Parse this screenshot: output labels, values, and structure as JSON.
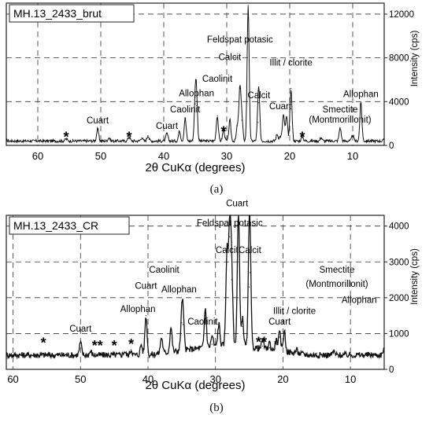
{
  "captions": {
    "a": "(a)",
    "b": "(b)"
  },
  "chart_data": [
    {
      "type": "line",
      "title": "MH.13_2433_brut",
      "xlabel": "2θ CuKα (degrees)",
      "ylabel": "Intensity (cps)",
      "xlim": [
        65,
        5
      ],
      "ylim": [
        0,
        13000
      ],
      "x_ticks": [
        60,
        50,
        40,
        30,
        20,
        10
      ],
      "y_ticks": [
        0,
        4000,
        8000,
        12000
      ],
      "y_tick_labels": [
        "0",
        "4000",
        "8000",
        "12000"
      ],
      "grid": "dashed",
      "baseline": 400,
      "series": [
        {
          "values": [
            [
              65,
              500
            ],
            [
              55.5,
              600
            ],
            [
              50.5,
              1500
            ],
            [
              48.7,
              700
            ],
            [
              45.5,
              800
            ],
            [
              43.5,
              700
            ],
            [
              42.5,
              900
            ],
            [
              39.5,
              1100
            ],
            [
              37.5,
              1300
            ],
            [
              36.6,
              2500
            ],
            [
              35,
              3800
            ],
            [
              34.8,
              4000
            ],
            [
              31.5,
              2700
            ],
            [
              30.5,
              1400
            ],
            [
              29.5,
              2300
            ],
            [
              28.3,
              1800
            ],
            [
              27.9,
              5200
            ],
            [
              27.6,
              2300
            ],
            [
              26.6,
              12800
            ],
            [
              25,
              2100
            ],
            [
              24.9,
              3900
            ],
            [
              22,
              1000
            ],
            [
              21.5,
              800
            ],
            [
              21,
              2800
            ],
            [
              20.5,
              2600
            ],
            [
              19.8,
              5200
            ],
            [
              18,
              800
            ],
            [
              15,
              700
            ],
            [
              12,
              1600
            ],
            [
              10,
              900
            ],
            [
              8.7,
              3900
            ],
            [
              5,
              500
            ]
          ]
        }
      ],
      "annotations": [
        {
          "label": "*",
          "x": 55.5,
          "y": 900
        },
        {
          "label": "Cuart",
          "x": 50.5,
          "y": 2000
        },
        {
          "label": "*",
          "x": 45.5,
          "y": 900
        },
        {
          "label": "Cuart",
          "x": 39.5,
          "y": 1500
        },
        {
          "label": "Caolinit",
          "x": 36.6,
          "y": 3000
        },
        {
          "label": "Allophan",
          "x": 34.8,
          "y": 4500
        },
        {
          "label": "Caolinit",
          "x": 31.5,
          "y": 5800
        },
        {
          "label": "*",
          "x": 30.5,
          "y": 1400
        },
        {
          "label": "Calcit",
          "x": 29.5,
          "y": 7800
        },
        {
          "label": "Feldspat potasic",
          "x": 27.9,
          "y": 9400
        },
        {
          "label": "Cuart",
          "x": 26.6,
          "y": 13300
        },
        {
          "label": "Calcit",
          "x": 24.9,
          "y": 4300
        },
        {
          "label": "Cuart",
          "x": 21.5,
          "y": 3300
        },
        {
          "label": "Illit / clorite",
          "x": 19.8,
          "y": 7300
        },
        {
          "label": "*",
          "x": 18,
          "y": 900
        },
        {
          "label": "Smectite",
          "x": 12,
          "y": 3000
        },
        {
          "label": "(Montmorillonit)",
          "x": 12,
          "y": 2100
        },
        {
          "label": "Allophan",
          "x": 8.7,
          "y": 4400
        }
      ]
    },
    {
      "type": "line",
      "title": "MH.13_2433_CR",
      "xlabel": "2θ CuKα (degrees)",
      "ylabel": "Intensity (cps)",
      "xlim": [
        61,
        5
      ],
      "ylim": [
        0,
        4300
      ],
      "x_ticks": [
        60,
        50,
        40,
        30,
        20,
        10
      ],
      "y_ticks": [
        0,
        1000,
        2000,
        3000,
        4000
      ],
      "y_tick_labels": [
        "0",
        "1000",
        "2000",
        "3000",
        "4000"
      ],
      "grid": "dashed",
      "baseline": 400,
      "series": [
        {
          "values": [
            [
              61,
              300
            ],
            [
              55.5,
              450
            ],
            [
              50,
              750
            ],
            [
              48.5,
              500
            ],
            [
              45.5,
              450
            ],
            [
              43.5,
              500
            ],
            [
              42.5,
              550
            ],
            [
              41,
              700
            ],
            [
              40.3,
              1500
            ],
            [
              38,
              850
            ],
            [
              36.6,
              1100
            ],
            [
              35,
              1300
            ],
            [
              34.8,
              1250
            ],
            [
              31.5,
              1500
            ],
            [
              30.5,
              700
            ],
            [
              29.5,
              1000
            ],
            [
              28.3,
              3000
            ],
            [
              27.9,
              3700
            ],
            [
              27.6,
              2500
            ],
            [
              26.6,
              4250
            ],
            [
              26,
              1200
            ],
            [
              25,
              2300
            ],
            [
              24.9,
              2700
            ],
            [
              23,
              650
            ],
            [
              22,
              600
            ],
            [
              21,
              700
            ],
            [
              20.5,
              900
            ],
            [
              19.8,
              1000
            ],
            [
              18,
              500
            ],
            [
              15,
              450
            ],
            [
              12.5,
              500
            ],
            [
              10,
              400
            ],
            [
              8.7,
              450
            ],
            [
              5,
              600
            ]
          ]
        }
      ],
      "annotations": [
        {
          "label": "*",
          "x": 55.5,
          "y": 780
        },
        {
          "label": "Cuart",
          "x": 50,
          "y": 1050
        },
        {
          "label": "**",
          "x": 47.5,
          "y": 700
        },
        {
          "label": "*",
          "x": 45,
          "y": 700
        },
        {
          "label": "*",
          "x": 42.5,
          "y": 750
        },
        {
          "label": "Allophan",
          "x": 41.5,
          "y": 1600
        },
        {
          "label": "Cuart",
          "x": 40.3,
          "y": 2250
        },
        {
          "label": "Caolinit",
          "x": 37.6,
          "y": 2700
        },
        {
          "label": "Allophan",
          "x": 35.4,
          "y": 2150
        },
        {
          "label": "Caolinit",
          "x": 31.9,
          "y": 1250
        },
        {
          "label": "Calcit",
          "x": 28.3,
          "y": 3250
        },
        {
          "label": "Feldspat potasic",
          "x": 27.9,
          "y": 4000
        },
        {
          "label": "Cuart",
          "x": 26.8,
          "y": 4550
        },
        {
          "label": "Calcit",
          "x": 24.9,
          "y": 3250
        },
        {
          "label": "**",
          "x": 23.2,
          "y": 800
        },
        {
          "label": "Cuart",
          "x": 20.5,
          "y": 1250
        },
        {
          "label": "Illit / clorite",
          "x": 18.3,
          "y": 1550
        },
        {
          "label": "Smectite",
          "x": 12,
          "y": 2700
        },
        {
          "label": "(Montmorillonit)",
          "x": 12,
          "y": 2300
        },
        {
          "label": "Allophan",
          "x": 8.7,
          "y": 1850
        }
      ]
    }
  ]
}
